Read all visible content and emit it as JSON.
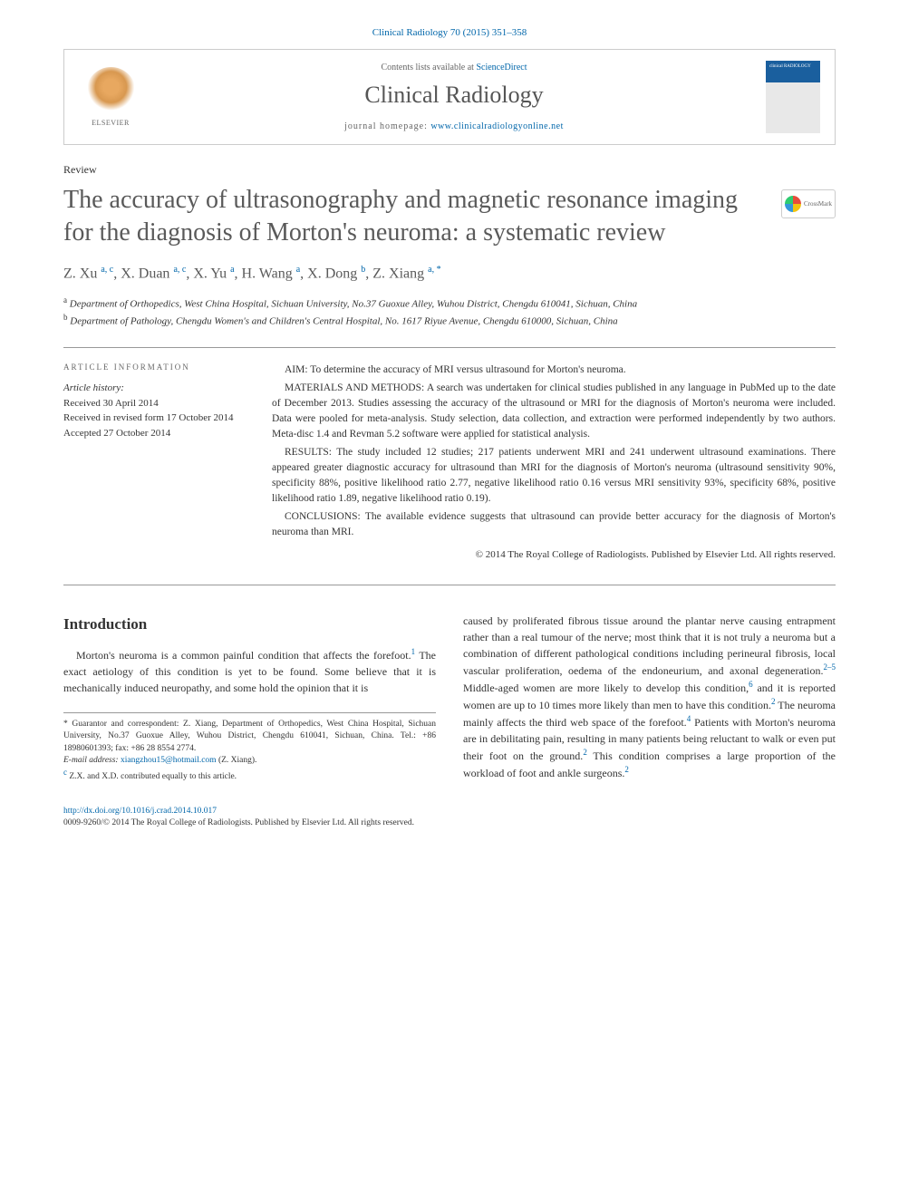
{
  "journal_ref": "Clinical Radiology 70 (2015) 351–358",
  "header": {
    "contents_prefix": "Contents lists available at ",
    "contents_link": "ScienceDirect",
    "journal_name": "Clinical Radiology",
    "homepage_prefix": "journal homepage: ",
    "homepage_url": "www.clinicalradiologyonline.net",
    "elsevier_label": "ELSEVIER"
  },
  "article_type": "Review",
  "title": "The accuracy of ultrasonography and magnetic resonance imaging for the diagnosis of Morton's neuroma: a systematic review",
  "crossmark_label": "CrossMark",
  "authors_html": "Z. Xu <sup>a, c</sup>, X. Duan <sup>a, c</sup>, X. Yu <sup>a</sup>, H. Wang <sup>a</sup>, X. Dong <sup>b</sup>, Z. Xiang <sup>a, *</sup>",
  "affiliations": {
    "a": "Department of Orthopedics, West China Hospital, Sichuan University, No.37 Guoxue Alley, Wuhou District, Chengdu 610041, Sichuan, China",
    "b": "Department of Pathology, Chengdu Women's and Children's Central Hospital, No. 1617 Riyue Avenue, Chengdu 610000, Sichuan, China"
  },
  "article_info": {
    "heading": "ARTICLE INFORMATION",
    "history_label": "Article history:",
    "received": "Received 30 April 2014",
    "revised": "Received in revised form 17 October 2014",
    "accepted": "Accepted 27 October 2014"
  },
  "abstract": {
    "aim": "AIM: To determine the accuracy of MRI versus ultrasound for Morton's neuroma.",
    "methods": "MATERIALS AND METHODS: A search was undertaken for clinical studies published in any language in PubMed up to the date of December 2013. Studies assessing the accuracy of the ultrasound or MRI for the diagnosis of Morton's neuroma were included. Data were pooled for meta-analysis. Study selection, data collection, and extraction were performed independently by two authors. Meta-disc 1.4 and Revman 5.2 software were applied for statistical analysis.",
    "results": "RESULTS: The study included 12 studies; 217 patients underwent MRI and 241 underwent ultrasound examinations. There appeared greater diagnostic accuracy for ultrasound than MRI for the diagnosis of Morton's neuroma (ultrasound sensitivity 90%, specificity 88%, positive likelihood ratio 2.77, negative likelihood ratio 0.16 versus MRI sensitivity 93%, specificity 68%, positive likelihood ratio 1.89, negative likelihood ratio 0.19).",
    "conclusions": "CONCLUSIONS: The available evidence suggests that ultrasound can provide better accuracy for the diagnosis of Morton's neuroma than MRI.",
    "copyright": "© 2014 The Royal College of Radiologists. Published by Elsevier Ltd. All rights reserved."
  },
  "body": {
    "intro_heading": "Introduction",
    "intro_p1": "Morton's neuroma is a common painful condition that affects the forefoot.",
    "intro_p1_cont": " The exact aetiology of this condition is yet to be found. Some believe that it is mechanically induced neuropathy, and some hold the opinion that it is",
    "intro_p2a": "caused by proliferated fibrous tissue around the plantar nerve causing entrapment rather than a real tumour of the nerve; most think that it is not truly a neuroma but a combination of different pathological conditions including perineural fibrosis, local vascular proliferation, oedema of the endoneurium, and axonal degeneration.",
    "intro_p2b": " Middle-aged women are more likely to develop this condition,",
    "intro_p2c": " and it is reported women are up to 10 times more likely than men to have this condition.",
    "intro_p2d": " The neuroma mainly affects the third web space of the forefoot.",
    "intro_p2e": " Patients with Morton's neuroma are in debilitating pain, resulting in many patients being reluctant to walk or even put their foot on the ground.",
    "intro_p2f": " This condition comprises a large proportion of the workload of foot and ankle surgeons."
  },
  "footnotes": {
    "corr": "* Guarantor and correspondent: Z. Xiang, Department of Orthopedics, West China Hospital, Sichuan University, No.37 Guoxue Alley, Wuhou District, Chengdu 610041, Sichuan, China. Tel.: +86 18980601393; fax: +86 28 8554 2774.",
    "email_label": "E-mail address: ",
    "email": "xiangzhou15@hotmail.com",
    "email_suffix": " (Z. Xiang).",
    "contrib": "Z.X. and X.D. contributed equally to this article."
  },
  "footer": {
    "doi": "http://dx.doi.org/10.1016/j.crad.2014.10.017",
    "issn_line": "0009-9260/© 2014 The Royal College of Radiologists. Published by Elsevier Ltd. All rights reserved."
  }
}
